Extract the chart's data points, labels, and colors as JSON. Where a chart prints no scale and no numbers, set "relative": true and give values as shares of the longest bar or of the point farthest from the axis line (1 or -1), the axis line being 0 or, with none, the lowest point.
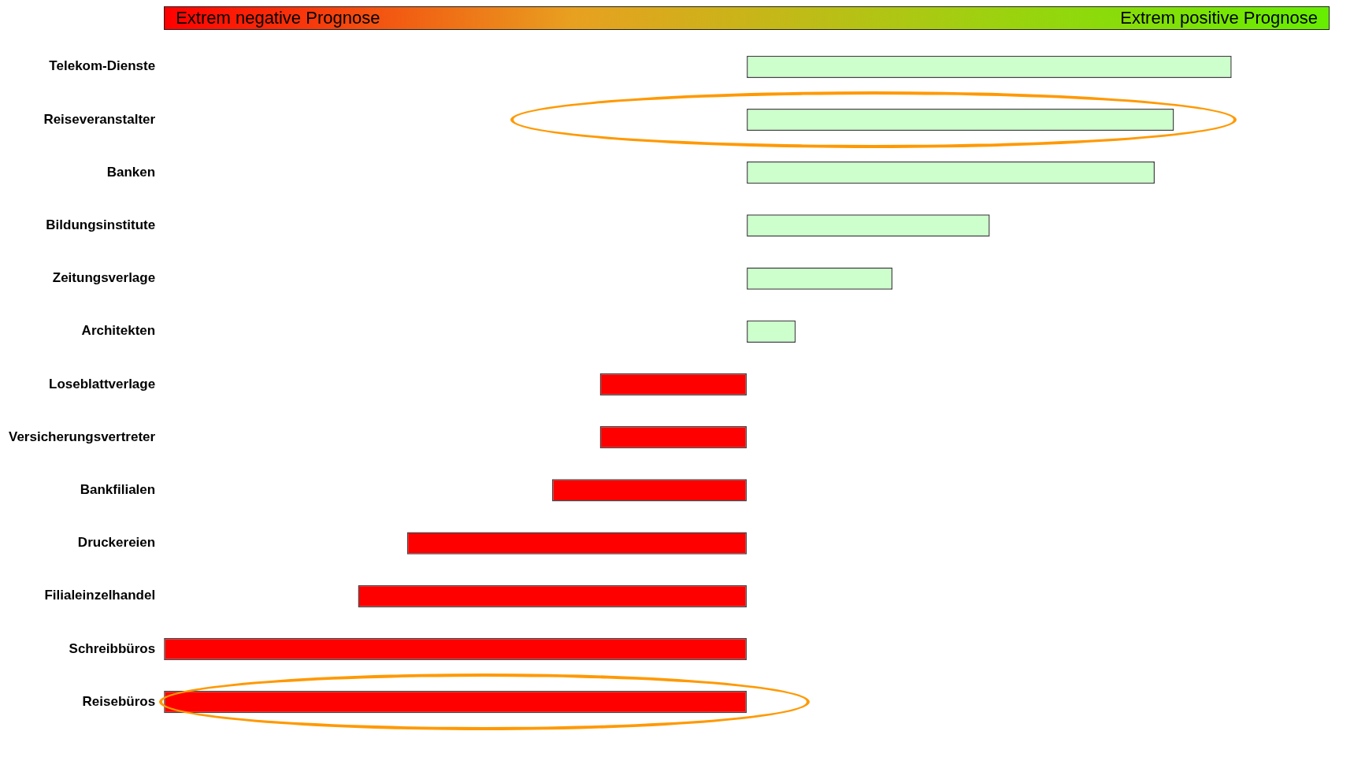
{
  "chart_data": {
    "type": "bar",
    "orientation": "horizontal",
    "relative": true,
    "annotations": [
      "Extrem negative Prognose",
      "Extrem positive Prognose"
    ],
    "categories": [
      "Telekom-Dienste",
      "Reiseveranstalter",
      "Banken",
      "Bildungsinstitute",
      "Zeitungsverlage",
      "Architekten",
      "Loseblattverlage",
      "Versicherungsvertreter",
      "Bankfilialen",
      "Druckereien",
      "Filialeinzelhandel",
      "Schreibbüros",
      "Reisebüros"
    ],
    "values": [
      0.832,
      0.733,
      0.7,
      0.417,
      0.25,
      0.084,
      -0.252,
      -0.252,
      -0.334,
      -0.583,
      -0.667,
      -1,
      -1
    ],
    "colors": [
      "#ccffcc",
      "#ccffcc",
      "#ccffcc",
      "#ccffcc",
      "#ccffcc",
      "#ccffcc",
      "#ff0000",
      "#ff0000",
      "#ff0000",
      "#ff0000",
      "#ff0000",
      "#ff0000",
      "#ff0000"
    ]
  }
}
